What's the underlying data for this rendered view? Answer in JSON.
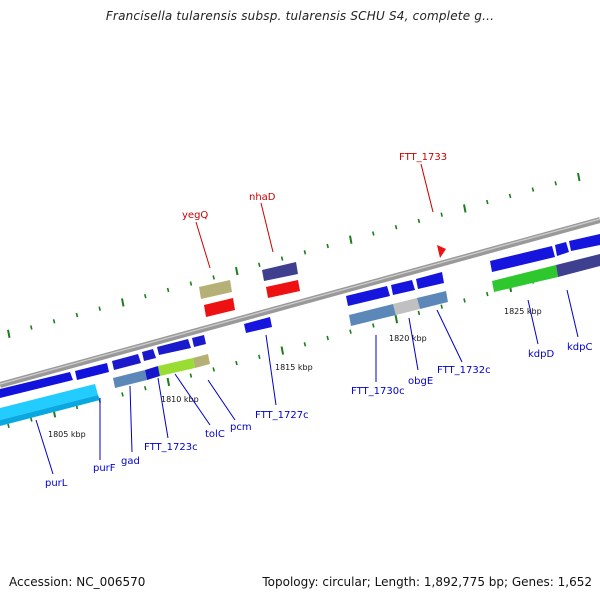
{
  "title": "Francisella tularensis subsp. tularensis SCHU S4, complete g...",
  "footer": {
    "accession": "Accession: NC_006570",
    "summary": "Topology: circular; Length: 1,892,775 bp; Genes: 1,652"
  },
  "ticks": [
    "1805 kbp",
    "1810 kbp",
    "1815 kbp",
    "1820 kbp",
    "1825 kbp"
  ],
  "genes_red": [
    "yegQ",
    "nhaD",
    "FTT_1733"
  ],
  "genes_blue": [
    "purL",
    "purF",
    "gad",
    "FTT_1723c",
    "tolC",
    "pcm",
    "FTT_1727c",
    "FTT_1730c",
    "obgE",
    "FTT_1732c",
    "kdpD",
    "kdpC"
  ],
  "colors": {
    "highlight_label": "#cc0000",
    "gene_label": "#0000cc",
    "gene_blue": "#1010e0",
    "gene_red": "#ee1111",
    "gene_navy": "#3f3f8f",
    "gene_olive": "#b5b076",
    "feat_cyan": "#22ccff",
    "feat_steel": "#5b88b8",
    "feat_green": "#2ec82e",
    "feat_lime": "#99dd33",
    "feat_gray": "#c0c0c0",
    "backbone": "#888888",
    "tick_mark": "#1a7f1a"
  }
}
